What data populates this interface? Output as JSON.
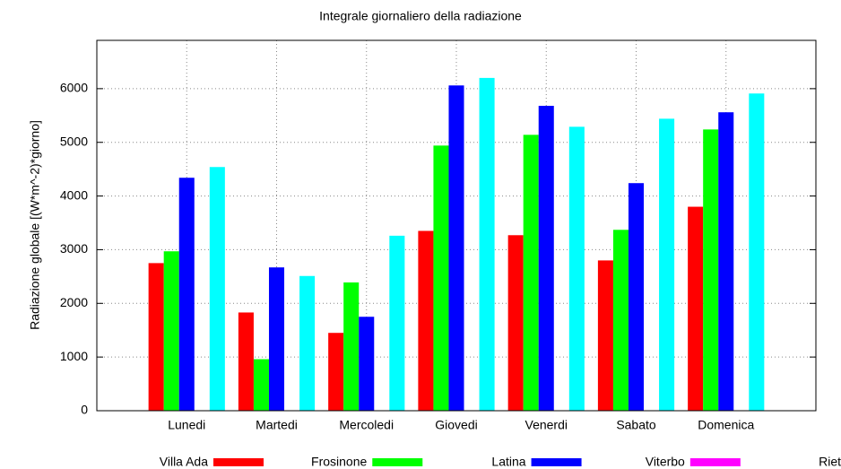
{
  "chart_data": {
    "type": "bar",
    "title": "Integrale giornaliero della radiazione",
    "y_label": "Radiazione globale [(W*m^-2)*giorno]",
    "categories": [
      "Lunedi",
      "Martedi",
      "Mercoledi",
      "Giovedi",
      "Venerdi",
      "Sabato",
      "Domenica"
    ],
    "series": [
      {
        "name": "Villa Ada",
        "color": "#ff0000",
        "values": [
          2750,
          1830,
          1450,
          3350,
          3270,
          2800,
          3800
        ]
      },
      {
        "name": "Frosinone",
        "color": "#00ff00",
        "values": [
          2970,
          960,
          2390,
          4940,
          5140,
          3370,
          5240
        ]
      },
      {
        "name": "Latina",
        "color": "#0000ff",
        "values": [
          4340,
          2670,
          1750,
          6060,
          5680,
          4240,
          5560
        ]
      },
      {
        "name": "Viterbo",
        "color": "#ff00ff",
        "values": [
          null,
          null,
          null,
          null,
          null,
          null,
          null
        ]
      },
      {
        "name": "Rieti",
        "color": "#00ffff",
        "values": [
          4540,
          2510,
          3260,
          6200,
          5290,
          5440,
          5910
        ]
      }
    ],
    "ylim": [
      0,
      6900
    ],
    "yticks": [
      0,
      1000,
      2000,
      3000,
      4000,
      5000,
      6000
    ],
    "grid": true,
    "legend": "bottom"
  }
}
